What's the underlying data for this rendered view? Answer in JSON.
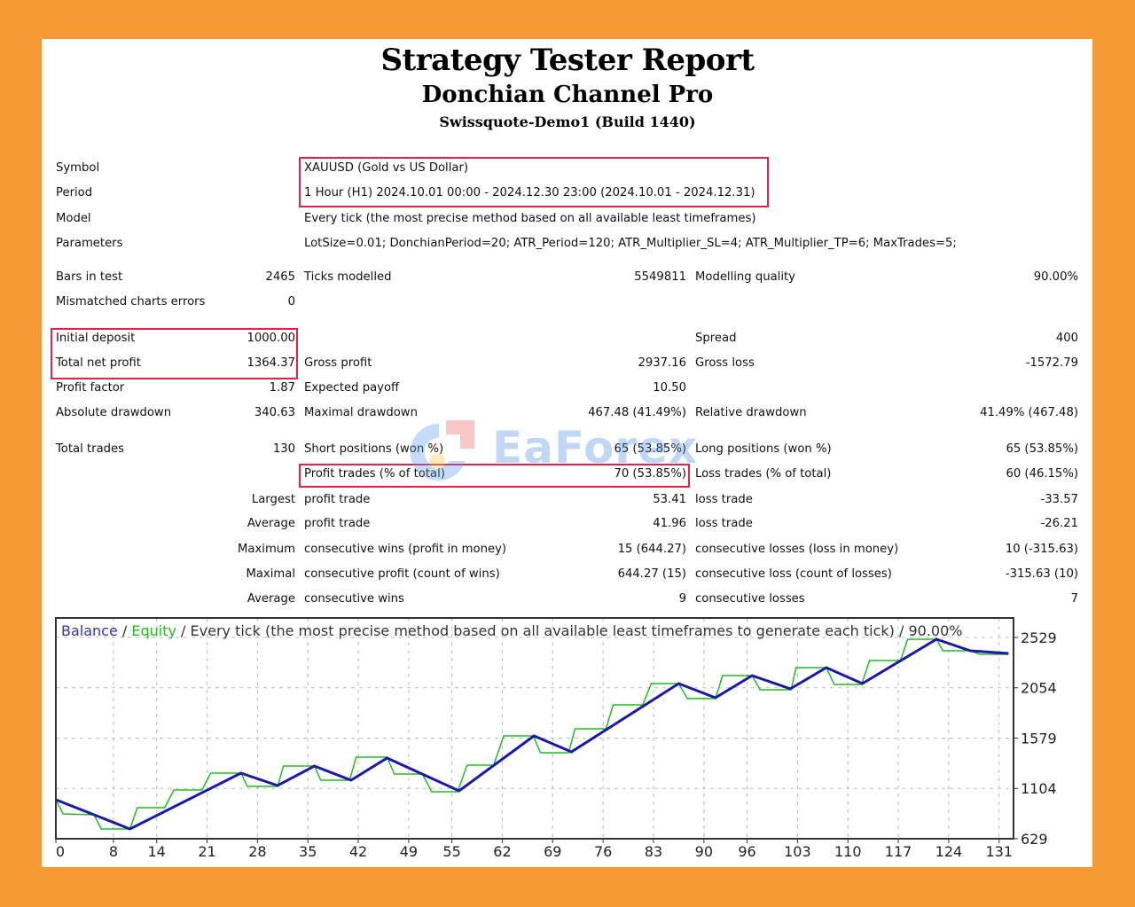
{
  "header": {
    "title": "Strategy Tester Report",
    "expert": "Donchian Channel Pro",
    "server": "Swissquote-Demo1 (Build 1440)"
  },
  "info_rows": [
    {
      "label": "Symbol",
      "value": "XAUUSD (Gold vs US Dollar)"
    },
    {
      "label": "Period",
      "value": "1 Hour (H1) 2024.10.01 00:00 - 2024.12.30 23:00 (2024.10.01 - 2024.12.31)"
    },
    {
      "label": "Model",
      "value": "Every tick (the most precise method based on all available least timeframes)"
    },
    {
      "label": "Parameters",
      "value": "LotSize=0.01; DonchianPeriod=20; ATR_Period=120; ATR_Multiplier_SL=4; ATR_Multiplier_TP=6; MaxTrades=5;"
    }
  ],
  "stat_rows": [
    [
      "Bars in test",
      "2465",
      "Ticks modelled",
      "5549811",
      "Modelling quality",
      "90.00%"
    ],
    [
      "Mismatched charts errors",
      "0",
      "",
      "",
      "",
      ""
    ],
    [
      "Initial deposit",
      "1000.00",
      "",
      "",
      "Spread",
      "400"
    ],
    [
      "Total net profit",
      "1364.37",
      "Gross profit",
      "2937.16",
      "Gross loss",
      "-1572.79"
    ],
    [
      "Profit factor",
      "1.87",
      "Expected payoff",
      "10.50",
      "",
      ""
    ],
    [
      "Absolute drawdown",
      "340.63",
      "Maximal drawdown",
      "467.48 (41.49%)",
      "Relative drawdown",
      "41.49% (467.48)"
    ],
    [
      "Total trades",
      "130",
      "Short positions (won %)",
      "65 (53.85%)",
      "Long positions (won %)",
      "65 (53.85%)"
    ],
    [
      "",
      "",
      "Profit trades (% of total)",
      "70 (53.85%)",
      "Loss trades (% of total)",
      "60 (46.15%)"
    ],
    [
      "",
      "Largest",
      "profit trade",
      "53.41",
      "loss trade",
      "-33.57"
    ],
    [
      "",
      "Average",
      "profit trade",
      "41.96",
      "loss trade",
      "-26.21"
    ],
    [
      "",
      "Maximum",
      "consecutive wins (profit in money)",
      "15 (644.27)",
      "consecutive losses (loss in money)",
      "10 (-315.63)"
    ],
    [
      "",
      "Maximal",
      "consecutive profit (count of wins)",
      "644.27 (15)",
      "consecutive loss (count of losses)",
      "-315.63 (10)"
    ],
    [
      "",
      "Average",
      "consecutive wins",
      "9",
      "consecutive losses",
      "7"
    ]
  ],
  "watermark": "EaForex",
  "colors": {
    "highlight": "#e3224c",
    "balance": "#1a1aa8",
    "equity": "#22bb22",
    "background": "#f89a33"
  },
  "chart_data": {
    "type": "line",
    "legend_balance": "Balance",
    "legend_equity": "Equity",
    "title_rest": " / Every tick (the most precise method based on all available least timeframes to generate each tick) / 90.00%",
    "xlim": [
      0,
      133
    ],
    "ylim": [
      629,
      2713
    ],
    "x_ticks": [
      0,
      8,
      14,
      21,
      28,
      35,
      42,
      49,
      55,
      62,
      69,
      76,
      83,
      90,
      96,
      103,
      110,
      117,
      124,
      131
    ],
    "y_ticks": [
      629,
      1104,
      1579,
      2054,
      2529
    ],
    "grid": true,
    "series": [
      {
        "name": "Balance",
        "points": [
          [
            0,
            997
          ],
          [
            10.3,
            721
          ],
          [
            25.7,
            1248
          ],
          [
            30.8,
            1131
          ],
          [
            35.9,
            1315
          ],
          [
            41,
            1181
          ],
          [
            46,
            1391
          ],
          [
            56,
            1081
          ],
          [
            66.4,
            1600
          ],
          [
            71.6,
            1449
          ],
          [
            86.5,
            2094
          ],
          [
            91.6,
            1960
          ],
          [
            96.7,
            2169
          ],
          [
            102,
            2044
          ],
          [
            107,
            2244
          ],
          [
            112,
            2094
          ],
          [
            122.3,
            2512
          ],
          [
            127,
            2403
          ],
          [
            132.3,
            2378
          ]
        ]
      },
      {
        "name": "Equity",
        "points": [
          [
            0,
            997
          ],
          [
            1,
            863
          ],
          [
            5.3,
            855
          ],
          [
            6.3,
            721
          ],
          [
            10.3,
            721
          ],
          [
            11.3,
            922
          ],
          [
            15.1,
            922
          ],
          [
            16.4,
            1089
          ],
          [
            20.3,
            1089
          ],
          [
            21.5,
            1248
          ],
          [
            25.7,
            1248
          ],
          [
            26.6,
            1123
          ],
          [
            30.8,
            1123
          ],
          [
            31.6,
            1315
          ],
          [
            35.9,
            1315
          ],
          [
            36.8,
            1181
          ],
          [
            40.8,
            1181
          ],
          [
            41.7,
            1399
          ],
          [
            46,
            1399
          ],
          [
            47,
            1240
          ],
          [
            50.9,
            1240
          ],
          [
            52.2,
            1073
          ],
          [
            55.8,
            1073
          ],
          [
            57.1,
            1324
          ],
          [
            60.8,
            1324
          ],
          [
            62.2,
            1600
          ],
          [
            66.3,
            1600
          ],
          [
            67.3,
            1441
          ],
          [
            71.2,
            1441
          ],
          [
            72.1,
            1667
          ],
          [
            76.4,
            1667
          ],
          [
            77.4,
            1893
          ],
          [
            81.5,
            1893
          ],
          [
            82.7,
            2094
          ],
          [
            86.5,
            2094
          ],
          [
            87.7,
            1952
          ],
          [
            91.6,
            1952
          ],
          [
            92.6,
            2169
          ],
          [
            96.7,
            2169
          ],
          [
            97.8,
            2035
          ],
          [
            102.1,
            2035
          ],
          [
            102.8,
            2244
          ],
          [
            107,
            2244
          ],
          [
            108.1,
            2085
          ],
          [
            111.9,
            2085
          ],
          [
            113,
            2311
          ],
          [
            117.3,
            2311
          ],
          [
            118.3,
            2512
          ],
          [
            122.3,
            2512
          ],
          [
            123.2,
            2403
          ],
          [
            126.9,
            2403
          ],
          [
            128.4,
            2370
          ],
          [
            132.3,
            2370
          ]
        ]
      }
    ]
  }
}
